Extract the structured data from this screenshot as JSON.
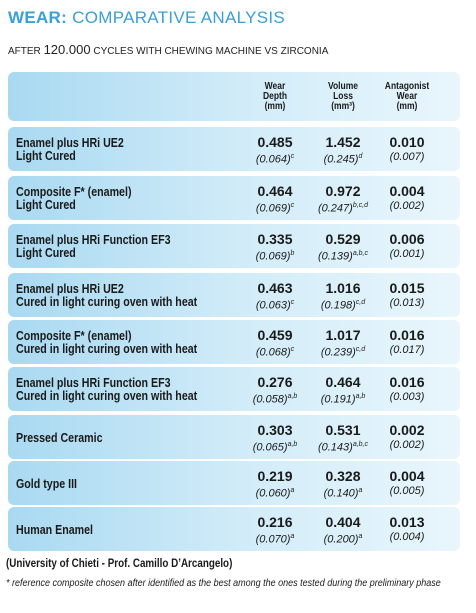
{
  "header": {
    "title_bold": "WEAR:",
    "title_rest": "COMPARATIVE ANALYSIS",
    "subtitle_pre": "AFTER",
    "subtitle_num": "120.000",
    "subtitle_post": "CYCLES WITH CHEWING MACHINE VS ZIRCONIA"
  },
  "table": {
    "columns": [
      [
        "Wear",
        "Depth",
        "(mm)"
      ],
      [
        "Volume",
        "Loss",
        "(mm³)"
      ],
      [
        "Antagonist",
        "Wear",
        "(mm)"
      ]
    ],
    "rows": [
      {
        "name": [
          "Enamel plus HRi UE2",
          "Light Cured"
        ],
        "cells": [
          {
            "value": "0.485",
            "sd": "(0.064)",
            "sup": "c"
          },
          {
            "value": "1.452",
            "sd": "(0.245)",
            "sup": "d"
          },
          {
            "value": "0.010",
            "sd": "(0.007)"
          }
        ]
      },
      {
        "name": [
          "Composite F* (enamel)",
          "Light Cured"
        ],
        "cells": [
          {
            "value": "0.464",
            "sd": "(0.069)",
            "sup": "c"
          },
          {
            "value": "0.972",
            "sd": "(0.247)",
            "sup": "b,c,d"
          },
          {
            "value": "0.004",
            "sd": "(0.002)"
          }
        ]
      },
      {
        "name": [
          "Enamel plus HRi Function EF3",
          "Light Cured"
        ],
        "cells": [
          {
            "value": "0.335",
            "sd": "(0.069)",
            "sup": "b"
          },
          {
            "value": "0.529",
            "sd": "(0.139)",
            "sup": "a,b,c"
          },
          {
            "value": "0.006",
            "sd": "(0.001)"
          }
        ]
      },
      {
        "name": [
          "Enamel plus HRi UE2",
          "Cured in light curing oven with heat"
        ],
        "cells": [
          {
            "value": "0.463",
            "sd": "(0.063)",
            "sup": "c"
          },
          {
            "value": "1.016",
            "sd": "(0.198)",
            "sup": "c,d"
          },
          {
            "value": "0.015",
            "sd": "(0.013)"
          }
        ]
      },
      {
        "name": [
          "Composite F* (enamel)",
          "Cured in light curing oven with heat"
        ],
        "cells": [
          {
            "value": "0.459",
            "sd": "(0.068)",
            "sup": "c"
          },
          {
            "value": "1.017",
            "sd": "(0.239)",
            "sup": "c,d"
          },
          {
            "value": "0.016",
            "sd": "(0.017)"
          }
        ]
      },
      {
        "name": [
          "Enamel plus HRi Function EF3",
          "Cured in light curing oven with heat"
        ],
        "cells": [
          {
            "value": "0.276",
            "sd": "(0.058)",
            "sup": "a,b"
          },
          {
            "value": "0.464",
            "sd": "(0.191)",
            "sup": "a,b"
          },
          {
            "value": "0.016",
            "sd": "(0.003)"
          }
        ]
      },
      {
        "name": [
          "Pressed Ceramic"
        ],
        "cells": [
          {
            "value": "0.303",
            "sd": "(0.065)",
            "sup": "a,b"
          },
          {
            "value": "0.531",
            "sd": "(0.143)",
            "sup": "a,b,c"
          },
          {
            "value": "0.002",
            "sd": "(0.002)"
          }
        ]
      },
      {
        "name": [
          "Gold type III"
        ],
        "cells": [
          {
            "value": "0.219",
            "sd": "(0.060)",
            "sup": "a"
          },
          {
            "value": "0.328",
            "sd": "(0.140)",
            "sup": "a"
          },
          {
            "value": "0.004",
            "sd": "(0.005)"
          }
        ]
      },
      {
        "name": [
          "Human Enamel"
        ],
        "cells": [
          {
            "value": "0.216",
            "sd": "(0.070)",
            "sup": "a"
          },
          {
            "value": "0.404",
            "sd": "(0.200)",
            "sup": "a"
          },
          {
            "value": "0.013",
            "sd": "(0.004)"
          }
        ]
      }
    ]
  },
  "footer": {
    "source": "(University of Chieti - Prof. Camillo D’Arcangelo)",
    "note": "* reference composite chosen after identified as the best among the ones tested during the preliminary phase"
  }
}
